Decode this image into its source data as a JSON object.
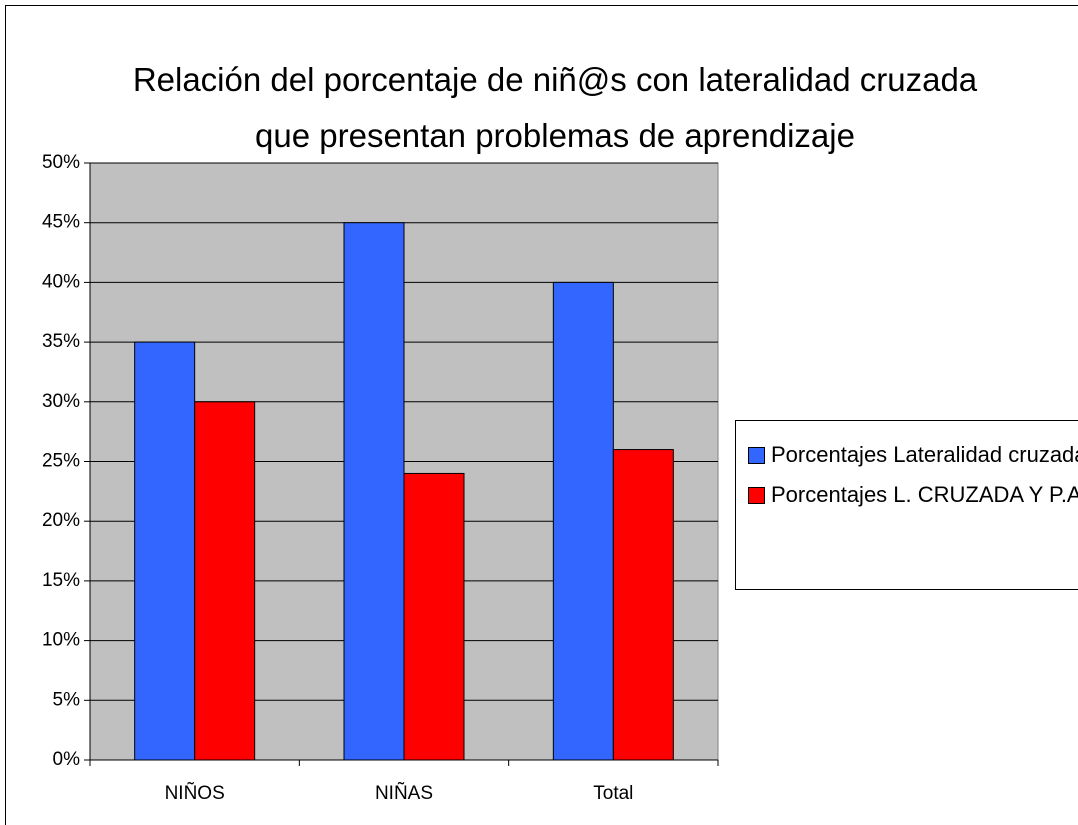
{
  "chart_data": {
    "type": "bar",
    "title": "Relación del porcentaje de niñ@s con lateralidad cruzada que presentan problemas de aprendizaje",
    "categories": [
      "NIÑOS",
      "NIÑAS",
      "Total"
    ],
    "series": [
      {
        "name": "Porcentajes Lateralidad cruzada",
        "color": "#3366ff",
        "values": [
          35,
          45,
          40
        ]
      },
      {
        "name": "Porcentajes L. CRUZADA Y P.A.",
        "color": "#ff0000",
        "values": [
          30,
          24,
          26
        ]
      }
    ],
    "ylim": [
      0,
      50
    ],
    "yticks": [
      {
        "value": 0,
        "label": "0%"
      },
      {
        "value": 5,
        "label": "5%"
      },
      {
        "value": 10,
        "label": "10%"
      },
      {
        "value": 15,
        "label": "15%"
      },
      {
        "value": 20,
        "label": "20%"
      },
      {
        "value": 25,
        "label": "25%"
      },
      {
        "value": 30,
        "label": "30%"
      },
      {
        "value": 35,
        "label": "35%"
      },
      {
        "value": 40,
        "label": "40%"
      },
      {
        "value": 45,
        "label": "45%"
      },
      {
        "value": 50,
        "label": "50%"
      }
    ],
    "grid": true,
    "legend": "right",
    "plot_background": "#c0c0c0"
  }
}
